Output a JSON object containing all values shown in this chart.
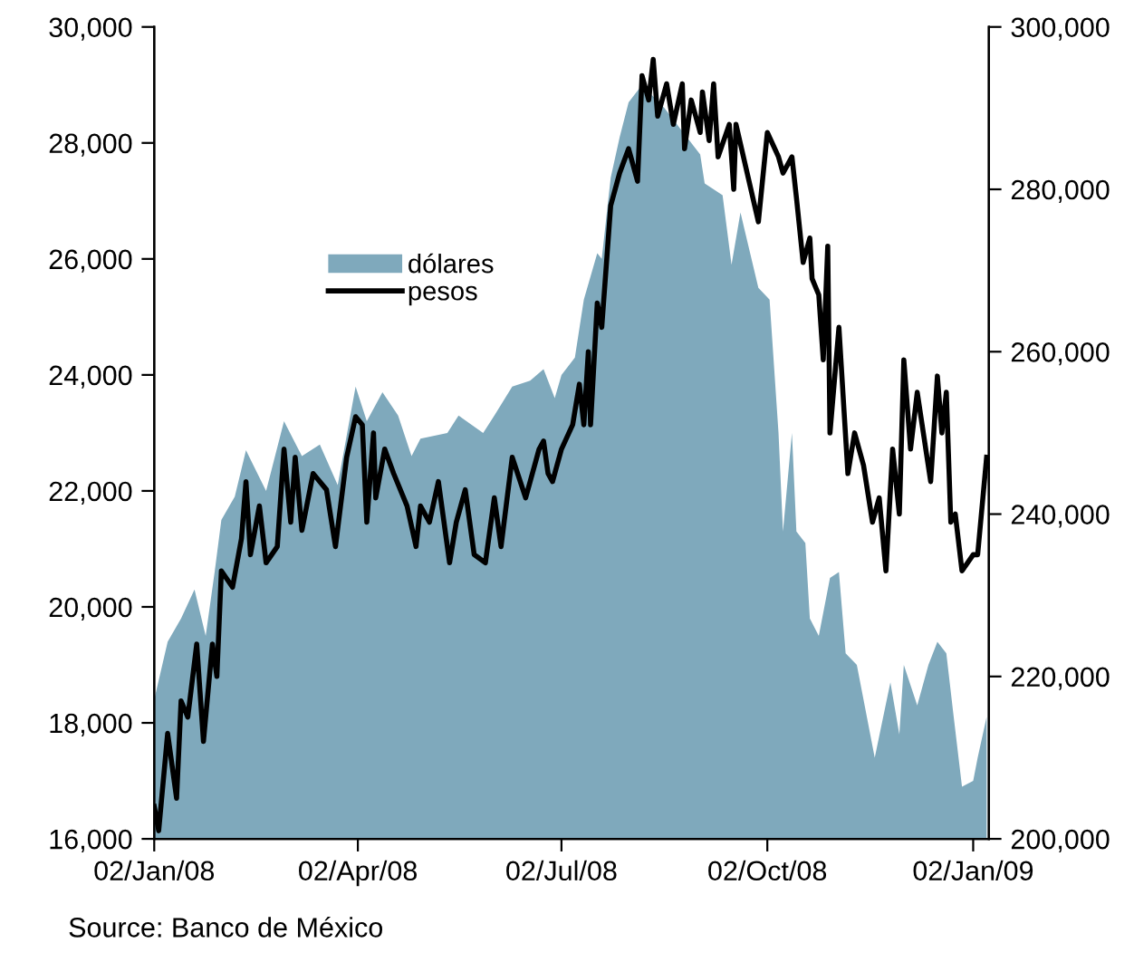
{
  "chart_data": {
    "type": "area",
    "annotations": [
      "Source: Banco de México"
    ],
    "xlim": [
      "2008-01-02",
      "2009-01-09"
    ],
    "xticks": [
      {
        "value": "2008-01-02",
        "label": "02/Jan/08"
      },
      {
        "value": "2008-04-02",
        "label": "02/Apr/08"
      },
      {
        "value": "2008-07-02",
        "label": "02/Jul/08"
      },
      {
        "value": "2008-10-02",
        "label": "02/Oct/08"
      },
      {
        "value": "2009-01-02",
        "label": "02/Jan/09"
      }
    ],
    "ylim": [
      16000,
      30000
    ],
    "yticks": [
      {
        "value": 16000,
        "label": "16,000"
      },
      {
        "value": 18000,
        "label": "18,000"
      },
      {
        "value": 20000,
        "label": "20,000"
      },
      {
        "value": 22000,
        "label": "22,000"
      },
      {
        "value": 24000,
        "label": "24,000"
      },
      {
        "value": 26000,
        "label": "26,000"
      },
      {
        "value": 28000,
        "label": "28,000"
      },
      {
        "value": 30000,
        "label": "30,000"
      }
    ],
    "y2lim": [
      200000,
      300000
    ],
    "y2ticks": [
      {
        "value": 200000,
        "label": "200,000"
      },
      {
        "value": 220000,
        "label": "220,000"
      },
      {
        "value": 240000,
        "label": "240,000"
      },
      {
        "value": 260000,
        "label": "260,000"
      },
      {
        "value": 280000,
        "label": "280,000"
      },
      {
        "value": 300000,
        "label": "300,000"
      }
    ],
    "legend": "top left",
    "grid": false,
    "series": [
      {
        "name": "dólares",
        "color": "#7fa9bc",
        "x": [
          "2008-01-02",
          "2008-01-08",
          "2008-01-14",
          "2008-01-20",
          "2008-01-25",
          "2008-01-29",
          "2008-02-01",
          "2008-02-07",
          "2008-02-12",
          "2008-02-21",
          "2008-02-29",
          "2008-03-08",
          "2008-03-16",
          "2008-03-24",
          "2008-04-01",
          "2008-04-06",
          "2008-04-13",
          "2008-04-20",
          "2008-04-26",
          "2008-04-30",
          "2008-05-12",
          "2008-05-17",
          "2008-05-28",
          "2008-06-02",
          "2008-06-10",
          "2008-06-18",
          "2008-06-24",
          "2008-06-29",
          "2008-07-02",
          "2008-07-08",
          "2008-07-12",
          "2008-07-18",
          "2008-07-20",
          "2008-07-24",
          "2008-07-28",
          "2008-08-01",
          "2008-08-07",
          "2008-08-17",
          "2008-08-25",
          "2008-09-02",
          "2008-09-04",
          "2008-09-12",
          "2008-09-16",
          "2008-09-20",
          "2008-09-28",
          "2008-10-03",
          "2008-10-07",
          "2008-10-09",
          "2008-10-13",
          "2008-10-15",
          "2008-10-19",
          "2008-10-21",
          "2008-10-25",
          "2008-10-30",
          "2008-11-03",
          "2008-11-06",
          "2008-11-11",
          "2008-11-19",
          "2008-11-26",
          "2008-11-30",
          "2008-12-02",
          "2008-12-08",
          "2008-12-13",
          "2008-12-17",
          "2008-12-21",
          "2008-12-24",
          "2008-12-28",
          "2009-01-02",
          "2009-01-04",
          "2009-01-08"
        ],
        "values": [
          18400,
          19400,
          19800,
          20300,
          19500,
          20600,
          21500,
          21900,
          22700,
          22000,
          23200,
          22600,
          22800,
          22100,
          23800,
          23200,
          23700,
          23300,
          22600,
          22900,
          23000,
          23300,
          23000,
          23300,
          23800,
          23900,
          24100,
          23600,
          24000,
          24300,
          25300,
          26100,
          26000,
          27400,
          28100,
          28700,
          29000,
          28600,
          28200,
          27800,
          27300,
          27100,
          25900,
          26800,
          25500,
          25300,
          23000,
          21300,
          23000,
          21300,
          21100,
          19800,
          19500,
          20500,
          20600,
          19200,
          19000,
          17400,
          18700,
          17800,
          19000,
          18300,
          19000,
          19400,
          19200,
          18200,
          16900,
          17000,
          17400,
          18100
        ]
      },
      {
        "name": "pesos",
        "type": "line",
        "axis": "y2",
        "color": "#000000",
        "x": [
          "2008-01-02",
          "2008-01-04",
          "2008-01-08",
          "2008-01-12",
          "2008-01-14",
          "2008-01-17",
          "2008-01-21",
          "2008-01-24",
          "2008-01-28",
          "2008-01-30",
          "2008-02-01",
          "2008-02-06",
          "2008-02-10",
          "2008-02-12",
          "2008-02-14",
          "2008-02-18",
          "2008-02-21",
          "2008-02-26",
          "2008-02-29",
          "2008-03-03",
          "2008-03-05",
          "2008-03-08",
          "2008-03-13",
          "2008-03-19",
          "2008-03-23",
          "2008-03-28",
          "2008-04-01",
          "2008-04-04",
          "2008-04-06",
          "2008-04-09",
          "2008-04-10",
          "2008-04-14",
          "2008-04-18",
          "2008-04-24",
          "2008-04-28",
          "2008-04-30",
          "2008-05-04",
          "2008-05-08",
          "2008-05-13",
          "2008-05-16",
          "2008-05-20",
          "2008-05-24",
          "2008-05-29",
          "2008-06-02",
          "2008-06-05",
          "2008-06-10",
          "2008-06-16",
          "2008-06-22",
          "2008-06-24",
          "2008-06-26",
          "2008-06-28",
          "2008-07-02",
          "2008-07-07",
          "2008-07-10",
          "2008-07-12",
          "2008-07-14",
          "2008-07-15",
          "2008-07-18",
          "2008-07-20",
          "2008-07-24",
          "2008-07-28",
          "2008-08-01",
          "2008-08-05",
          "2008-08-07",
          "2008-08-10",
          "2008-08-12",
          "2008-08-14",
          "2008-08-18",
          "2008-08-21",
          "2008-08-25",
          "2008-08-26",
          "2008-08-29",
          "2008-09-02",
          "2008-09-03",
          "2008-09-06",
          "2008-09-08",
          "2008-09-10",
          "2008-09-15",
          "2008-09-17",
          "2008-09-18",
          "2008-09-23",
          "2008-09-28",
          "2008-10-02",
          "2008-10-07",
          "2008-10-09",
          "2008-10-13",
          "2008-10-15",
          "2008-10-18",
          "2008-10-21",
          "2008-10-22",
          "2008-10-25",
          "2008-10-27",
          "2008-10-29",
          "2008-10-30",
          "2008-11-03",
          "2008-11-07",
          "2008-11-10",
          "2008-11-14",
          "2008-11-18",
          "2008-11-21",
          "2008-11-24",
          "2008-11-27",
          "2008-11-30",
          "2008-12-02",
          "2008-12-05",
          "2008-12-08",
          "2008-12-14",
          "2008-12-17",
          "2008-12-19",
          "2008-12-21",
          "2008-12-23",
          "2008-12-25",
          "2008-12-28",
          "2009-01-02",
          "2009-01-04",
          "2009-01-08"
        ],
        "values": [
          204000,
          201000,
          213000,
          205000,
          217000,
          215000,
          224000,
          212000,
          224000,
          220000,
          233000,
          231000,
          237000,
          244000,
          235000,
          241000,
          234000,
          236000,
          248000,
          239000,
          247000,
          238000,
          245000,
          243000,
          236000,
          247000,
          252000,
          251000,
          239000,
          250000,
          242000,
          248000,
          245000,
          241000,
          236000,
          241000,
          239000,
          244000,
          234000,
          239000,
          243000,
          235000,
          234000,
          242000,
          236000,
          247000,
          242000,
          248000,
          249000,
          245000,
          244000,
          248000,
          251000,
          256000,
          251000,
          260000,
          251000,
          266000,
          263000,
          278000,
          282000,
          285000,
          281000,
          294000,
          291000,
          296000,
          289000,
          293000,
          288000,
          293000,
          285000,
          291000,
          287000,
          292000,
          286000,
          293000,
          284000,
          288000,
          280000,
          288000,
          282000,
          276000,
          287000,
          284000,
          282000,
          284000,
          279000,
          271000,
          274000,
          269000,
          267000,
          259000,
          273000,
          250000,
          263000,
          245000,
          250000,
          246000,
          239000,
          242000,
          233000,
          248000,
          240000,
          259000,
          248000,
          255000,
          244000,
          257000,
          250000,
          255000,
          239000,
          240000,
          233000,
          235000,
          235000,
          247000
        ]
      }
    ]
  }
}
